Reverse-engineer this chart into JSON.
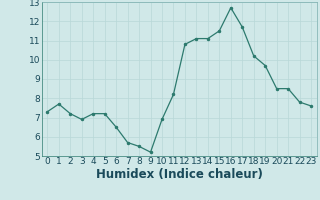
{
  "x": [
    0,
    1,
    2,
    3,
    4,
    5,
    6,
    7,
    8,
    9,
    10,
    11,
    12,
    13,
    14,
    15,
    16,
    17,
    18,
    19,
    20,
    21,
    22,
    23
  ],
  "y": [
    7.3,
    7.7,
    7.2,
    6.9,
    7.2,
    7.2,
    6.5,
    5.7,
    5.5,
    5.2,
    6.9,
    8.2,
    10.8,
    11.1,
    11.1,
    11.5,
    12.7,
    11.7,
    10.2,
    9.7,
    8.5,
    8.5,
    7.8,
    7.6
  ],
  "xlabel": "Humidex (Indice chaleur)",
  "ylim": [
    5,
    13
  ],
  "xlim_min": -0.5,
  "xlim_max": 23.5,
  "yticks": [
    5,
    6,
    7,
    8,
    9,
    10,
    11,
    12,
    13
  ],
  "xticks": [
    0,
    1,
    2,
    3,
    4,
    5,
    6,
    7,
    8,
    9,
    10,
    11,
    12,
    13,
    14,
    15,
    16,
    17,
    18,
    19,
    20,
    21,
    22,
    23
  ],
  "line_color": "#2d7a6e",
  "marker_color": "#2d7a6e",
  "bg_color": "#d0e8e8",
  "grid_color": "#b8d8d8",
  "xlabel_color": "#1a4a5a",
  "tick_color": "#1a4a5a",
  "tick_fontsize": 6.5,
  "xlabel_fontsize": 8.5
}
